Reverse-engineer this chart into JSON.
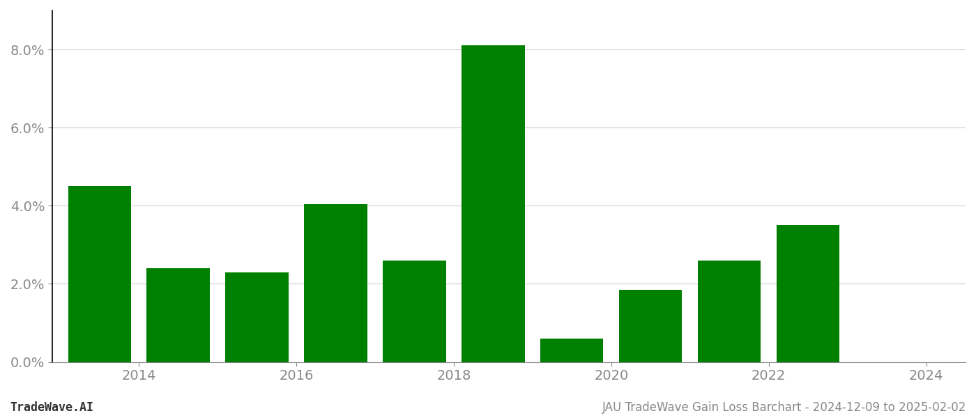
{
  "years": [
    2014,
    2015,
    2016,
    2017,
    2018,
    2019,
    2020,
    2021,
    2022,
    2023,
    2024
  ],
  "values": [
    0.045,
    0.024,
    0.023,
    0.0405,
    0.026,
    0.081,
    0.006,
    0.0185,
    0.026,
    0.035,
    null
  ],
  "bar_color": "#008000",
  "background_color": "#ffffff",
  "title": "JAU TradeWave Gain Loss Barchart - 2024-12-09 to 2025-02-02",
  "watermark": "TradeWave.AI",
  "ylim": [
    0,
    0.09
  ],
  "yticks": [
    0.0,
    0.02,
    0.04,
    0.06,
    0.08
  ],
  "grid_color": "#cccccc",
  "tick_color": "#888888",
  "spine_color": "#000000",
  "title_fontsize": 12,
  "watermark_fontsize": 12,
  "axis_label_fontsize": 14,
  "bar_width": 0.8,
  "xlim": [
    2013.4,
    2025.0
  ],
  "xticks": [
    2014.5,
    2016.5,
    2018.5,
    2020.5,
    2022.5,
    2024.5
  ],
  "xtick_labels": [
    "2014",
    "2016",
    "2018",
    "2020",
    "2022",
    "2024"
  ]
}
